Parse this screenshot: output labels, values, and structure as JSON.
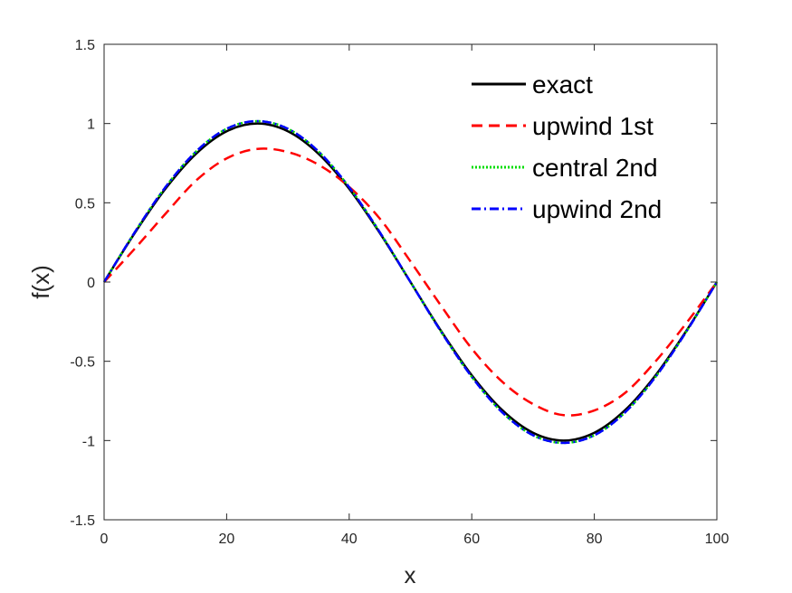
{
  "chart_data": {
    "type": "line",
    "xlabel": "x",
    "ylabel": "f(x)",
    "xlim": [
      0,
      100
    ],
    "ylim": [
      -1.5,
      1.5
    ],
    "xticks": [
      0,
      20,
      40,
      60,
      80,
      100
    ],
    "xtick_labels": [
      "0",
      "20",
      "40",
      "60",
      "80",
      "100"
    ],
    "yticks": [
      -1.5,
      -1,
      -0.5,
      0,
      0.5,
      1,
      1.5
    ],
    "ytick_labels": [
      "-1.5",
      "-1",
      "-0.5",
      "0",
      "0.5",
      "1",
      "1.5"
    ],
    "grid": false,
    "legend_position": "top-right",
    "x": [
      0,
      5,
      10,
      15,
      20,
      25,
      30,
      35,
      40,
      45,
      50,
      55,
      60,
      65,
      70,
      75,
      80,
      85,
      90,
      95,
      100
    ],
    "series": [
      {
        "name": "exact",
        "color": "#000000",
        "style": "solid",
        "values": [
          0,
          0.309,
          0.588,
          0.809,
          0.951,
          1.0,
          0.951,
          0.809,
          0.588,
          0.309,
          0,
          -0.309,
          -0.588,
          -0.809,
          -0.951,
          -1.0,
          -0.951,
          -0.809,
          -0.588,
          -0.309,
          0
        ]
      },
      {
        "name": "upwind 1st",
        "color": "#ff0000",
        "style": "dashed",
        "values": [
          0,
          0.21,
          0.43,
          0.64,
          0.78,
          0.84,
          0.82,
          0.74,
          0.6,
          0.4,
          0.13,
          -0.15,
          -0.42,
          -0.63,
          -0.77,
          -0.84,
          -0.81,
          -0.7,
          -0.5,
          -0.26,
          0
        ]
      },
      {
        "name": "central 2nd",
        "color": "#00dd00",
        "style": "dotted",
        "values": [
          0,
          0.314,
          0.598,
          0.823,
          0.967,
          1.015,
          0.967,
          0.823,
          0.598,
          0.314,
          0,
          -0.314,
          -0.598,
          -0.823,
          -0.967,
          -1.015,
          -0.967,
          -0.823,
          -0.598,
          -0.314,
          0
        ]
      },
      {
        "name": "upwind 2nd",
        "color": "#0000ff",
        "style": "dashdot",
        "values": [
          0,
          0.314,
          0.598,
          0.823,
          0.967,
          1.015,
          0.967,
          0.823,
          0.598,
          0.314,
          0,
          -0.314,
          -0.598,
          -0.823,
          -0.967,
          -1.015,
          -0.967,
          -0.823,
          -0.598,
          -0.314,
          0
        ]
      }
    ]
  }
}
